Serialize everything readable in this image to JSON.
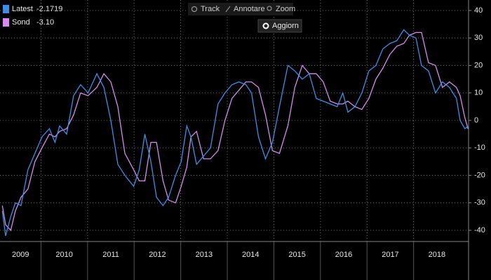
{
  "chart_data": {
    "type": "line",
    "x": [
      2009.17,
      2009.24,
      2009.35,
      2009.45,
      2009.57,
      2009.72,
      2009.87,
      2010.02,
      2010.18,
      2010.3,
      2010.4,
      2010.55,
      2010.7,
      2010.85,
      2011.01,
      2011.2,
      2011.35,
      2011.5,
      2011.65,
      2011.8,
      2011.99,
      2012.11,
      2012.23,
      2012.36,
      2012.48,
      2012.62,
      2012.74,
      2012.89,
      2013.01,
      2013.13,
      2013.22,
      2013.34,
      2013.49,
      2013.64,
      2013.8,
      2013.95,
      2014.1,
      2014.25,
      2014.4,
      2014.52,
      2014.67,
      2014.82,
      2014.97,
      2015.12,
      2015.3,
      2015.45,
      2015.61,
      2015.76,
      2015.91,
      2016.06,
      2016.21,
      2016.36,
      2016.48,
      2016.59,
      2016.74,
      2016.89,
      2017.04,
      2017.19,
      2017.34,
      2017.49,
      2017.64,
      2017.79,
      2017.91,
      2018.05,
      2018.17,
      2018.32,
      2018.47,
      2018.62,
      2018.77,
      2018.92,
      2019.0,
      2019.1,
      2019.17
    ],
    "series": [
      {
        "name": "Latest",
        "color": "#3d8fe6",
        "last_value": -2.1719,
        "values": [
          -33,
          -42,
          -35,
          -30,
          -31,
          -18,
          -12,
          -6,
          -3,
          -8,
          -2,
          -5,
          9,
          13,
          10,
          17,
          12,
          0,
          -16,
          -20,
          -24,
          -18,
          -5,
          -15,
          -28,
          -31,
          -28,
          -20,
          -15,
          -2,
          -6,
          -16,
          -13,
          -10,
          6,
          10,
          13,
          14,
          13,
          10,
          -6,
          -14,
          -8,
          5,
          20,
          18,
          15,
          17,
          8,
          7,
          6,
          5,
          10,
          3,
          5,
          10,
          18,
          20,
          26,
          28,
          29,
          33,
          31,
          30,
          20,
          18,
          10,
          14,
          12,
          8,
          0,
          -3,
          -2.1719
        ]
      },
      {
        "name": "Sond",
        "color": "#d68cec",
        "last_value": {
          "value": -3.1,
          "label": "-3.10"
        },
        "values": [
          -31,
          -38,
          -40,
          -33,
          -28,
          -25,
          -15,
          -10,
          -5,
          -6,
          -4,
          -3,
          2,
          10,
          9,
          12,
          17,
          14,
          5,
          -12,
          -18,
          -22,
          -22,
          -8,
          -8,
          -22,
          -29,
          -30,
          -24,
          -17,
          -6,
          -4,
          -14,
          -14,
          -11,
          0,
          8,
          11,
          14,
          14,
          12,
          2,
          -11,
          -12,
          -2,
          12,
          20,
          17,
          17,
          14,
          7,
          6,
          6,
          7,
          5,
          4,
          8,
          15,
          19,
          24,
          27,
          28,
          31,
          32,
          32,
          21,
          20,
          12,
          14,
          12,
          9,
          1,
          -3.1
        ]
      }
    ],
    "xlim": [
      2009.12,
      2019.18
    ],
    "xticks": [
      {
        "value": 2009,
        "label": "2009"
      },
      {
        "value": 2010,
        "label": "2010"
      },
      {
        "value": 2011,
        "label": "2011"
      },
      {
        "value": 2012,
        "label": "2012"
      },
      {
        "value": 2013,
        "label": "2013"
      },
      {
        "value": 2014,
        "label": "2014"
      },
      {
        "value": 2015,
        "label": "2015"
      },
      {
        "value": 2016,
        "label": "2016"
      },
      {
        "value": 2017,
        "label": "2017"
      },
      {
        "value": 2018,
        "label": "2018"
      }
    ],
    "ylim": [
      -40,
      40
    ],
    "yticks": [
      -40,
      -30,
      -20,
      -10,
      0,
      10,
      20,
      30,
      40
    ],
    "grid": true
  },
  "toolbar": {
    "items": [
      "Track",
      "Annotare",
      "Zoom"
    ],
    "button": "Aggiorn"
  }
}
